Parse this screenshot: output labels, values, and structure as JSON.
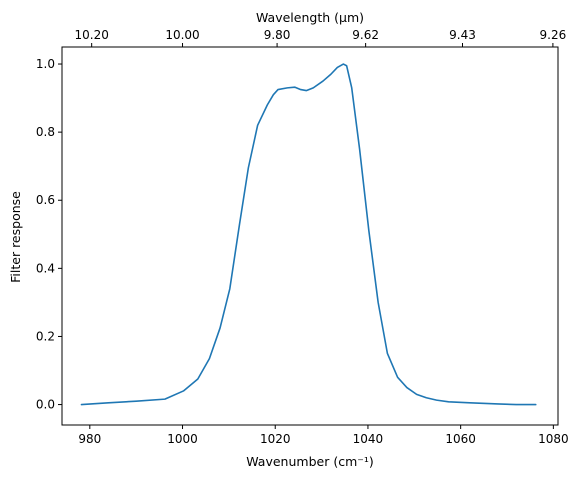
{
  "chart_data": {
    "type": "line",
    "title": "",
    "xlabel": "Wavenumber (cm⁻¹)",
    "ylabel": "Filter response",
    "top_xlabel": "Wavelength (μm)",
    "xlim": [
      974,
      1081
    ],
    "ylim": [
      -0.06,
      1.05
    ],
    "x_ticks": [
      980,
      1000,
      1020,
      1040,
      1060,
      1080
    ],
    "y_ticks": [
      0.0,
      0.2,
      0.4,
      0.6,
      0.8,
      1.0
    ],
    "y_tick_labels": [
      "0.0",
      "0.2",
      "0.4",
      "0.6",
      "0.8",
      "1.0"
    ],
    "top_ticks": [
      {
        "label": "10.20",
        "at_wavenumber": 980.4
      },
      {
        "label": "10.00",
        "at_wavenumber": 1000.0
      },
      {
        "label": "9.80",
        "at_wavenumber": 1020.4
      },
      {
        "label": "9.62",
        "at_wavenumber": 1039.5
      },
      {
        "label": "9.43",
        "at_wavenumber": 1060.4
      },
      {
        "label": "9.26",
        "at_wavenumber": 1079.9
      }
    ],
    "grid": false,
    "line_color": "#1f77b4",
    "series": [
      {
        "x": [
          978.2,
          984,
          990,
          996.2,
          1000.2,
          1003.3,
          1005.8,
          1008.1,
          1010.2,
          1012.3,
          1014.2,
          1016.2,
          1018.3,
          1019.6,
          1020.6,
          1022.6,
          1024.2,
          1025.5,
          1026.7,
          1028.2,
          1030.3,
          1032,
          1033.4,
          1034.7,
          1035.4,
          1036.5,
          1038.2,
          1040.2,
          1042.2,
          1044.2,
          1046.4,
          1048.4,
          1050.5,
          1052.6,
          1054.8,
          1057.4,
          1062,
          1068,
          1072,
          1076.2
        ],
        "y": [
          0.0,
          0.005,
          0.01,
          0.016,
          0.04,
          0.075,
          0.135,
          0.225,
          0.34,
          0.53,
          0.695,
          0.82,
          0.88,
          0.91,
          0.925,
          0.93,
          0.932,
          0.925,
          0.922,
          0.93,
          0.95,
          0.97,
          0.99,
          1.0,
          0.995,
          0.93,
          0.75,
          0.51,
          0.3,
          0.15,
          0.08,
          0.05,
          0.03,
          0.02,
          0.013,
          0.008,
          0.005,
          0.002,
          0.0,
          0.0
        ]
      }
    ]
  }
}
